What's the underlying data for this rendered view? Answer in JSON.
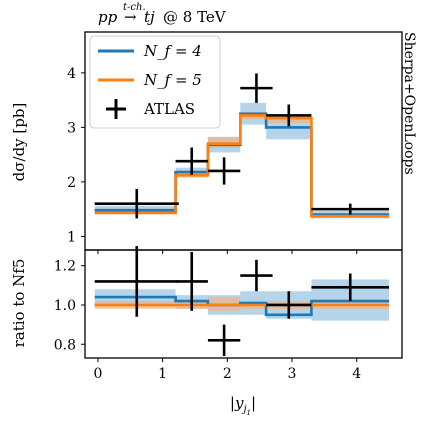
{
  "title": {
    "process_text": "pp",
    "arrow_label": "t-ch.",
    "arrow": "→",
    "final_state": "tj",
    "energy_text": "@ 8 TeV"
  },
  "side_label": "Sherpa+OpenLoops",
  "legend": {
    "nf4": "N_f = 4",
    "nf5": "N_f = 5",
    "atlas": "ATLAS"
  },
  "colors": {
    "nf4": "#1f77b4",
    "nf5": "#ff7f0e",
    "atlas": "#000000",
    "nf4_band": "#9ec5e2",
    "nf5_band": "#f4b07f",
    "axes": "#000000"
  },
  "chart_data": [
    {
      "panel": "main",
      "type": "line",
      "step": true,
      "ylabel": "dσ/dy [pb]",
      "xlim": [
        -0.2,
        4.7
      ],
      "ylim": [
        0.75,
        4.75
      ],
      "yticks": [
        1,
        2,
        3,
        4
      ],
      "grid": false,
      "legend_position": "top-left",
      "bin_edges": [
        -0.05,
        1.2,
        1.7,
        2.2,
        2.6,
        3.3,
        4.5
      ],
      "series": [
        {
          "name": "N_f = 4",
          "values": [
            1.48,
            2.18,
            2.68,
            3.25,
            3.0,
            1.4
          ],
          "band_low": [
            1.42,
            2.1,
            2.54,
            3.05,
            2.78,
            1.33
          ],
          "band_high": [
            1.56,
            2.26,
            2.82,
            3.45,
            3.22,
            1.47
          ]
        },
        {
          "name": "N_f = 5",
          "values": [
            1.43,
            2.12,
            2.7,
            3.22,
            3.17,
            1.37
          ],
          "band_low": [
            1.41,
            2.08,
            2.62,
            3.15,
            3.08,
            1.34
          ],
          "band_high": [
            1.45,
            2.17,
            2.83,
            3.28,
            3.22,
            1.4
          ]
        },
        {
          "name": "ATLAS",
          "x": [
            0.6,
            1.45,
            1.95,
            2.45,
            2.95,
            3.9
          ],
          "xerr_low": [
            0.65,
            0.25,
            0.25,
            0.25,
            0.35,
            0.6
          ],
          "xerr_high": [
            0.65,
            0.25,
            0.25,
            0.25,
            0.35,
            0.6
          ],
          "y": [
            1.6,
            2.38,
            2.2,
            3.72,
            3.22,
            1.5
          ],
          "yerr": [
            0.27,
            0.25,
            0.25,
            0.27,
            0.2,
            0.1
          ]
        }
      ]
    },
    {
      "panel": "ratio",
      "type": "line",
      "step": true,
      "xlabel": "|y_j1|",
      "ylabel": "ratio to Nf5",
      "xlim": [
        -0.2,
        4.7
      ],
      "ylim": [
        0.73,
        1.28
      ],
      "xticks": [
        0,
        1,
        2,
        3,
        4
      ],
      "yticks": [
        0.8,
        1.0,
        1.2
      ],
      "ytick_labels": [
        "0.8",
        "1.0",
        "1.2"
      ],
      "bin_edges": [
        -0.05,
        1.2,
        1.7,
        2.2,
        2.6,
        3.3,
        4.5
      ],
      "series": [
        {
          "name": "N_f = 4",
          "values": [
            1.04,
            1.02,
            1.0,
            1.01,
            0.95,
            1.02
          ],
          "band_low": [
            0.99,
            0.98,
            0.95,
            0.95,
            0.93,
            0.92
          ],
          "band_high": [
            1.08,
            1.05,
            1.05,
            1.07,
            1.07,
            1.13
          ]
        },
        {
          "name": "N_f = 5",
          "values": [
            1.0,
            1.0,
            1.0,
            1.0,
            1.0,
            1.0
          ],
          "band_low": [
            0.98,
            0.98,
            0.97,
            0.98,
            0.98,
            0.98
          ],
          "band_high": [
            1.02,
            1.02,
            1.04,
            1.02,
            1.02,
            1.02
          ]
        },
        {
          "name": "ATLAS",
          "x": [
            0.6,
            1.45,
            1.95,
            2.45,
            2.95,
            3.9
          ],
          "xerr_low": [
            0.65,
            0.25,
            0.25,
            0.25,
            0.35,
            0.6
          ],
          "xerr_high": [
            0.65,
            0.25,
            0.25,
            0.25,
            0.35,
            0.6
          ],
          "y": [
            1.12,
            1.12,
            0.82,
            1.15,
            1.0,
            1.09
          ],
          "yerr": [
            0.18,
            0.15,
            0.08,
            0.08,
            0.07,
            0.07
          ]
        }
      ]
    }
  ]
}
